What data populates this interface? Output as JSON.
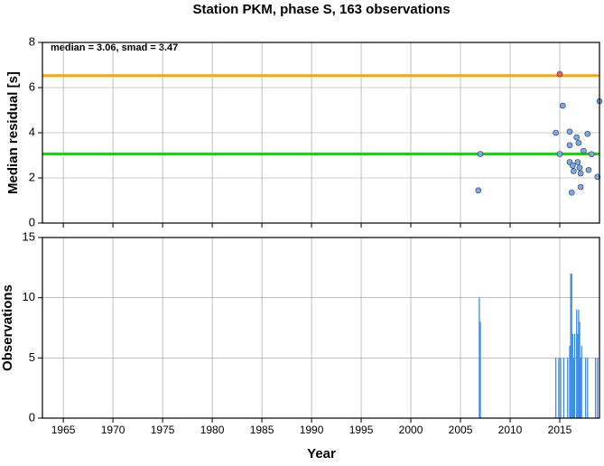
{
  "chart_data": [
    {
      "type": "scatter",
      "title": "Station PKM, phase S, 163 observations",
      "ylabel": "Median residual [s]",
      "annotation": "median = 3.06, smad = 3.47",
      "x": [
        2006.8,
        2007.0,
        2014.6,
        2015.0,
        2015.0,
        2015.3,
        2016.0,
        2016.0,
        2016.0,
        2016.2,
        2016.3,
        2016.4,
        2016.7,
        2016.8,
        2016.9,
        2017.0,
        2017.1,
        2017.1,
        2017.4,
        2017.8,
        2017.9,
        2018.2,
        2018.8,
        2019.0
      ],
      "values": [
        1.45,
        3.06,
        4.0,
        6.6,
        3.06,
        5.2,
        4.05,
        2.7,
        3.45,
        1.35,
        2.55,
        2.3,
        3.8,
        2.7,
        3.55,
        2.45,
        2.2,
        1.6,
        3.2,
        3.95,
        2.35,
        3.05,
        2.05,
        5.4
      ],
      "colors": [
        "#78a8f0",
        "#78a8f0",
        "#78a8f0",
        "#f06060",
        "#78a8f0",
        "#78a8f0",
        "#78a8f0",
        "#78a8f0",
        "#78a8f0",
        "#78a8f0",
        "#78a8f0",
        "#78a8f0",
        "#78a8f0",
        "#78a8f0",
        "#78a8f0",
        "#78a8f0",
        "#78a8f0",
        "#78a8f0",
        "#78a8f0",
        "#78a8f0",
        "#78a8f0",
        "#78a8f0",
        "#78a8f0",
        "#78a8f0"
      ],
      "hlines": [
        {
          "value": 6.53,
          "color": "#ffa500"
        },
        {
          "value": 3.06,
          "color": "#00e000"
        }
      ],
      "xlim": [
        1962.9,
        2019.0
      ],
      "xticks": [
        1965,
        1970,
        1975,
        1980,
        1985,
        1990,
        1995,
        2000,
        2005,
        2010,
        2015
      ],
      "ylim": [
        0,
        8
      ],
      "yticks": [
        0,
        2,
        4,
        6,
        8
      ],
      "grid": true
    },
    {
      "type": "bar",
      "xlabel": "Year",
      "ylabel": "Observations",
      "color": "#3c8ce6",
      "x": [
        2006.9,
        2007.0,
        2014.6,
        2014.9,
        2015.1,
        2015.4,
        2015.8,
        2016.0,
        2016.1,
        2016.2,
        2016.3,
        2016.4,
        2016.5,
        2016.7,
        2016.8,
        2016.9,
        2017.0,
        2017.1,
        2017.2,
        2017.6,
        2017.8,
        2018.6,
        2018.8
      ],
      "values": [
        10,
        8,
        5,
        5,
        5,
        5,
        5,
        6,
        12,
        12,
        7,
        5,
        7,
        9,
        7,
        9,
        8,
        5,
        6,
        5,
        5,
        5,
        5
      ],
      "xlim": [
        1962.9,
        2019.0
      ],
      "xticks": [
        1965,
        1970,
        1975,
        1980,
        1985,
        1990,
        1995,
        2000,
        2005,
        2010,
        2015
      ],
      "ylim": [
        0,
        15
      ],
      "yticks": [
        0,
        5,
        10,
        15
      ],
      "grid": true
    }
  ]
}
